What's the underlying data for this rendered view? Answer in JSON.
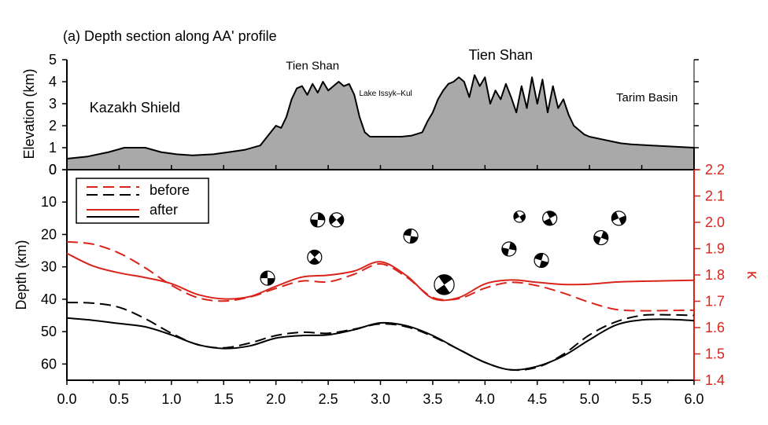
{
  "title": "(a) Depth section along AA' profile",
  "colors": {
    "before_after_red": "#d9241c",
    "black": "#000000",
    "topo_fill": "#a9a9a9"
  },
  "chart_data": [
    {
      "type": "area",
      "ylabel": "Elevation (km)",
      "ylim": [
        0,
        5
      ],
      "yticks": [
        "0",
        "1",
        "2",
        "3",
        "4",
        "5"
      ],
      "xlim": [
        0,
        6
      ],
      "annotations": [
        {
          "text": "Kazakh Shield",
          "x": 0.65,
          "y": 2.6
        },
        {
          "text": "Tien Shan",
          "x": 2.35,
          "y": 4.55
        },
        {
          "text": "Lake Issyk–Kul",
          "x": 3.05,
          "y": 3.35
        },
        {
          "text": "Tien Shan",
          "x": 4.15,
          "y": 5.0
        },
        {
          "text": "Tarim Basin",
          "x": 5.55,
          "y": 3.1
        }
      ],
      "x": [
        0,
        0.2,
        0.4,
        0.55,
        0.75,
        0.9,
        1.05,
        1.2,
        1.4,
        1.55,
        1.7,
        1.85,
        1.95,
        2.0,
        2.05,
        2.1,
        2.15,
        2.2,
        2.25,
        2.3,
        2.35,
        2.4,
        2.45,
        2.5,
        2.55,
        2.6,
        2.65,
        2.7,
        2.75,
        2.8,
        2.85,
        2.9,
        3.0,
        3.1,
        3.2,
        3.3,
        3.4,
        3.45,
        3.5,
        3.55,
        3.6,
        3.65,
        3.7,
        3.75,
        3.8,
        3.85,
        3.9,
        3.95,
        4.0,
        4.05,
        4.1,
        4.15,
        4.2,
        4.25,
        4.3,
        4.35,
        4.4,
        4.45,
        4.5,
        4.55,
        4.6,
        4.65,
        4.7,
        4.75,
        4.8,
        4.85,
        4.9,
        4.95,
        5.0,
        5.1,
        5.2,
        5.3,
        5.4,
        5.6,
        5.8,
        6.0
      ],
      "values": [
        0.5,
        0.6,
        0.8,
        1.0,
        1.0,
        0.8,
        0.7,
        0.65,
        0.7,
        0.8,
        0.9,
        1.1,
        1.7,
        2.0,
        1.9,
        2.4,
        3.2,
        3.7,
        3.8,
        3.4,
        3.9,
        3.5,
        4.0,
        3.6,
        3.8,
        4.0,
        3.8,
        3.9,
        3.4,
        2.4,
        1.7,
        1.5,
        1.5,
        1.5,
        1.5,
        1.55,
        1.7,
        2.2,
        2.6,
        3.2,
        3.6,
        3.9,
        4.0,
        4.2,
        4.0,
        3.3,
        4.3,
        3.8,
        4.2,
        3.0,
        3.6,
        3.2,
        3.9,
        3.3,
        2.6,
        3.8,
        2.8,
        4.2,
        3.0,
        4.1,
        2.6,
        3.8,
        2.8,
        3.2,
        2.5,
        2.0,
        1.8,
        1.6,
        1.5,
        1.4,
        1.3,
        1.2,
        1.15,
        1.1,
        1.05,
        1.0
      ]
    },
    {
      "type": "line",
      "ylabel": "Depth (km)",
      "y2label": "κ",
      "ylim": [
        0,
        65
      ],
      "y2lim": [
        1.4,
        2.2
      ],
      "xlim": [
        0,
        6
      ],
      "xticks": [
        "0.0",
        "0.5",
        "1.0",
        "1.5",
        "2.0",
        "2.5",
        "3.0",
        "3.5",
        "4.0",
        "4.5",
        "5.0",
        "5.5",
        "6.0"
      ],
      "yticks": [
        "0",
        "10",
        "20",
        "30",
        "40",
        "50",
        "60"
      ],
      "y2ticks": [
        "1.4",
        "1.5",
        "1.6",
        "1.7",
        "1.8",
        "1.9",
        "2.0",
        "2.1",
        "2.2"
      ],
      "legend": {
        "placement": "top-left",
        "entries": [
          "before",
          "after"
        ]
      },
      "x": [
        0,
        0.25,
        0.5,
        0.75,
        1.0,
        1.25,
        1.5,
        1.75,
        2.0,
        2.25,
        2.5,
        2.75,
        3.0,
        3.25,
        3.5,
        3.75,
        4.0,
        4.25,
        4.5,
        4.75,
        5.0,
        5.25,
        5.5,
        5.75,
        6.0
      ],
      "series": [
        {
          "name": "before",
          "axis": "depth",
          "color": "black",
          "dash": true,
          "values": [
            41,
            41.2,
            42.5,
            46,
            50.5,
            54,
            55,
            53.5,
            51.2,
            50.2,
            50.5,
            49.2,
            47.6,
            48.5,
            51.5,
            55.5,
            59.5,
            61.8,
            61,
            57,
            51,
            47,
            45,
            44.8,
            45
          ]
        },
        {
          "name": "after",
          "axis": "depth",
          "color": "black",
          "dash": false,
          "values": [
            45.8,
            46.5,
            47.5,
            48.5,
            51,
            54,
            55.2,
            54.4,
            52,
            51.2,
            51,
            49.4,
            47.3,
            48.2,
            51.2,
            55.5,
            59.5,
            61.8,
            60.7,
            57.5,
            52.5,
            48,
            46.4,
            46.2,
            46.6
          ]
        },
        {
          "name": "before",
          "axis": "kappa",
          "color": "red",
          "dash": true,
          "values": [
            1.926,
            1.917,
            1.883,
            1.827,
            1.761,
            1.714,
            1.701,
            1.716,
            1.749,
            1.777,
            1.774,
            1.803,
            1.842,
            1.792,
            1.715,
            1.71,
            1.75,
            1.772,
            1.759,
            1.731,
            1.696,
            1.669,
            1.664,
            1.665,
            1.666
          ]
        },
        {
          "name": "after",
          "axis": "kappa",
          "color": "red",
          "dash": false,
          "values": [
            1.882,
            1.834,
            1.808,
            1.79,
            1.767,
            1.726,
            1.709,
            1.718,
            1.757,
            1.792,
            1.799,
            1.815,
            1.85,
            1.797,
            1.711,
            1.714,
            1.766,
            1.781,
            1.772,
            1.764,
            1.765,
            1.773,
            1.776,
            1.778,
            1.78
          ]
        }
      ],
      "focal_mechanisms": [
        {
          "x": 1.92,
          "depth": 33.5,
          "size": 1
        },
        {
          "x": 2.37,
          "depth": 27,
          "size": 1
        },
        {
          "x": 2.4,
          "depth": 15.5,
          "size": 1
        },
        {
          "x": 2.58,
          "depth": 15.5,
          "size": 1
        },
        {
          "x": 3.29,
          "depth": 20.5,
          "size": 1
        },
        {
          "x": 3.61,
          "depth": 35.5,
          "size": 1.4
        },
        {
          "x": 4.23,
          "depth": 24.5,
          "size": 1
        },
        {
          "x": 4.33,
          "depth": 14.5,
          "size": 0.8
        },
        {
          "x": 4.54,
          "depth": 28,
          "size": 1
        },
        {
          "x": 4.62,
          "depth": 15,
          "size": 1
        },
        {
          "x": 5.11,
          "depth": 21,
          "size": 1
        },
        {
          "x": 5.28,
          "depth": 15,
          "size": 1
        }
      ]
    }
  ]
}
